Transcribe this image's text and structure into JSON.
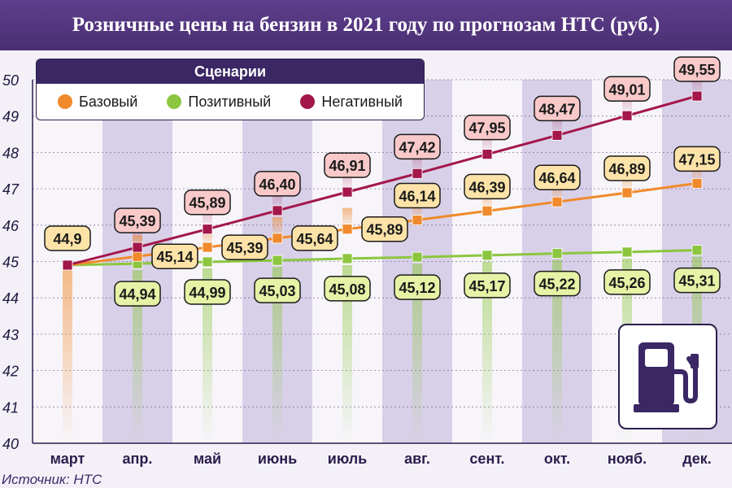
{
  "title": "Розничные цены на бензин в 2021 году по прогнозам НТС (руб.)",
  "source": "Источник: НТС",
  "legend": {
    "title": "Сценарии",
    "items": [
      {
        "label": "Базовый",
        "color": "#f08a2c"
      },
      {
        "label": "Позитивный",
        "color": "#8cc63f"
      },
      {
        "label": "Негативный",
        "color": "#a3174a"
      }
    ]
  },
  "pump_icon": "fuel-pump-icon",
  "colors": {
    "base": "#f08a2c",
    "positive": "#8cc63f",
    "negative": "#a3174a",
    "accent": "#4a2f73",
    "label_base_fill": "#fde3a8",
    "label_positive_fill": "#e6f2a6",
    "label_negative_fill": "#f9c9c9"
  },
  "chart_data": {
    "type": "line",
    "title": "Розничные цены на бензин в 2021 году по прогнозам НТС (руб.)",
    "categories": [
      "март",
      "апр.",
      "май",
      "июнь",
      "июль",
      "авг.",
      "сент.",
      "окт.",
      "нояб.",
      "дек."
    ],
    "ylim": [
      40,
      50
    ],
    "yticks": [
      40,
      41,
      42,
      43,
      44,
      45,
      46,
      47,
      48,
      49,
      50
    ],
    "start_label": "44,9",
    "legend_position": "top-left",
    "series": [
      {
        "name": "Базовый",
        "values": [
          44.9,
          45.14,
          45.39,
          45.64,
          45.89,
          46.14,
          46.39,
          46.64,
          46.89,
          47.15
        ],
        "labels": [
          "",
          "45,14",
          "45,39",
          "45,64",
          "45,89",
          "46,14",
          "46,39",
          "46,64",
          "46,89",
          "47,15"
        ]
      },
      {
        "name": "Позитивный",
        "values": [
          44.9,
          44.94,
          44.99,
          45.03,
          45.08,
          45.12,
          45.17,
          45.22,
          45.26,
          45.31
        ],
        "labels": [
          "",
          "44,94",
          "44,99",
          "45,03",
          "45,08",
          "45,12",
          "45,17",
          "45,22",
          "45,26",
          "45,31"
        ]
      },
      {
        "name": "Негативный",
        "values": [
          44.9,
          45.39,
          45.89,
          46.4,
          46.91,
          47.42,
          47.95,
          48.47,
          49.01,
          49.55
        ],
        "labels": [
          "",
          "45,39",
          "45,89",
          "46,40",
          "46,91",
          "47,42",
          "47,95",
          "48,47",
          "49,01",
          "49,55"
        ]
      }
    ]
  }
}
